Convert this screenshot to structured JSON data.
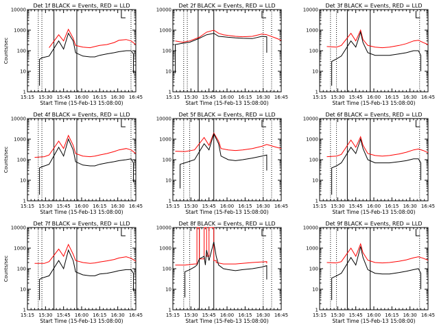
{
  "chart_data": [
    {
      "type": "line",
      "title": "Det 1f BLACK = Events, RED = LLD",
      "xlabel": "Start Time (15-Feb-13 15:08:00)",
      "ylabel": "Counts/sec",
      "xticks": [
        "15:15",
        "15:30",
        "15:45",
        "16:00",
        "16:15",
        "16:30",
        "16:45"
      ],
      "yticks": [
        "1",
        "10",
        "100",
        "1000",
        "10000"
      ],
      "xlim_minutes": [
        7,
        52
      ],
      "ylim": [
        1,
        10000
      ],
      "yscale": "log",
      "series": [
        {
          "color": "#000000",
          "x": [
            12,
            12,
            13,
            16,
            20,
            22,
            24,
            26,
            27,
            30,
            33,
            35,
            37,
            40,
            43,
            45,
            48,
            50,
            51,
            51
          ],
          "y": [
            2,
            38,
            45,
            55,
            300,
            120,
            700,
            300,
            80,
            55,
            50,
            50,
            60,
            70,
            80,
            90,
            100,
            100,
            70,
            8
          ]
        },
        {
          "color": "#ff0000",
          "x": [
            16,
            20,
            22,
            24,
            26,
            27,
            30,
            33,
            35,
            37,
            40,
            43,
            45,
            48,
            50,
            52
          ],
          "y": [
            140,
            600,
            300,
            1100,
            400,
            180,
            150,
            140,
            160,
            180,
            200,
            250,
            320,
            350,
            300,
            200
          ]
        }
      ],
      "vlines_dotted": [
        11.5,
        13,
        50
      ],
      "vlines_solid": [
        18,
        27.5
      ],
      "flag": 46
    },
    {
      "type": "line",
      "title": "Det 2f BLACK = Events, RED = LLD",
      "xlabel": "Start Time (15-Feb-13 15:08:00)",
      "ylabel": "",
      "xticks": [
        "15:15",
        "15:30",
        "15:45",
        "16:00",
        "16:15",
        "16:30",
        "16:45"
      ],
      "yticks": [
        "1",
        "10",
        "100",
        "1000",
        "10000"
      ],
      "xlim_minutes": [
        7,
        52
      ],
      "ylim": [
        1,
        10000
      ],
      "yscale": "log",
      "series": [
        {
          "color": "#000000",
          "x": [
            8,
            8,
            10,
            14,
            18,
            21,
            24,
            26,
            28,
            30,
            33,
            36,
            40,
            44,
            46,
            46
          ],
          "y": [
            8,
            200,
            220,
            260,
            400,
            600,
            700,
            500,
            480,
            450,
            420,
            400,
            390,
            500,
            480,
            80
          ]
        },
        {
          "color": "#ff0000",
          "x": [
            8,
            11,
            14,
            18,
            21,
            24,
            26,
            28,
            30,
            33,
            36,
            40,
            44,
            46,
            50,
            52
          ],
          "y": [
            300,
            260,
            300,
            450,
            800,
            1000,
            700,
            600,
            550,
            500,
            480,
            500,
            650,
            600,
            400,
            320
          ]
        }
      ],
      "vlines_dotted": [
        11.5,
        13,
        44.5,
        48
      ],
      "vlines_solid": [
        17.5,
        24
      ],
      "flag": 44
    },
    {
      "type": "line",
      "title": "Det 3f BLACK = Events, RED = LLD",
      "xlabel": "Start Time (15-Feb-13 15:08:00)",
      "ylabel": "",
      "xticks": [
        "15:15",
        "15:30",
        "15:45",
        "16:00",
        "16:15",
        "16:30",
        "16:45"
      ],
      "yticks": [
        "1",
        "10",
        "100",
        "1000",
        "10000"
      ],
      "xlim_minutes": [
        7,
        52
      ],
      "ylim": [
        1,
        10000
      ],
      "yscale": "log",
      "series": [
        {
          "color": "#000000",
          "x": [
            12,
            12,
            14,
            16,
            20,
            22,
            24,
            25,
            27,
            30,
            33,
            36,
            40,
            43,
            46,
            48,
            49,
            49
          ],
          "y": [
            2,
            30,
            40,
            55,
            300,
            150,
            800,
            250,
            80,
            60,
            60,
            60,
            70,
            80,
            100,
            100,
            60,
            10
          ]
        },
        {
          "color": "#ff0000",
          "x": [
            10,
            14,
            16,
            20,
            22,
            24,
            25,
            27,
            30,
            33,
            36,
            40,
            43,
            46,
            48,
            50,
            52
          ],
          "y": [
            160,
            150,
            180,
            700,
            300,
            1000,
            350,
            180,
            150,
            140,
            150,
            180,
            220,
            300,
            320,
            250,
            200
          ]
        }
      ],
      "vlines_dotted": [
        11.5,
        14,
        48.5
      ],
      "vlines_solid": [
        18.5,
        28
      ],
      "flag": 47
    },
    {
      "type": "line",
      "title": "Det 4f BLACK = Events, RED = LLD",
      "xlabel": "Start Time (15-Feb-13 15:08:00)",
      "ylabel": "Counts/sec",
      "xticks": [
        "15:15",
        "15:30",
        "15:45",
        "16:00",
        "16:15",
        "16:30",
        "16:45"
      ],
      "yticks": [
        "1",
        "10",
        "100",
        "1000",
        "10000"
      ],
      "xlim_minutes": [
        7,
        52
      ],
      "ylim": [
        1,
        10000
      ],
      "yscale": "log",
      "series": [
        {
          "color": "#000000",
          "x": [
            12,
            12,
            13,
            16,
            20,
            22,
            24,
            26,
            27,
            30,
            33,
            35,
            37,
            40,
            43,
            45,
            48,
            50,
            51,
            51
          ],
          "y": [
            2,
            40,
            45,
            60,
            400,
            150,
            1000,
            300,
            80,
            55,
            50,
            50,
            60,
            70,
            80,
            90,
            100,
            110,
            70,
            8
          ]
        },
        {
          "color": "#ff0000",
          "x": [
            10,
            14,
            16,
            20,
            22,
            24,
            26,
            27,
            30,
            33,
            35,
            37,
            40,
            43,
            45,
            48,
            50,
            52
          ],
          "y": [
            130,
            140,
            170,
            800,
            350,
            1500,
            500,
            200,
            150,
            140,
            150,
            170,
            200,
            250,
            300,
            350,
            300,
            200
          ]
        }
      ],
      "vlines_dotted": [
        11.5,
        13,
        50
      ],
      "vlines_solid": [
        18,
        27.5
      ],
      "flag": 46
    },
    {
      "type": "line",
      "title": "Det 5f BLACK = Events, RED = LLD",
      "xlabel": "Start Time (15-Feb-13 15:08:00)",
      "ylabel": "",
      "xticks": [
        "15:15",
        "15:30",
        "15:45",
        "16:00",
        "16:15",
        "16:30",
        "16:45"
      ],
      "yticks": [
        "1",
        "10",
        "100",
        "1000",
        "10000"
      ],
      "xlim_minutes": [
        7,
        52
      ],
      "ylim": [
        1,
        10000
      ],
      "yscale": "log",
      "series": [
        {
          "color": "#000000",
          "x": [
            10,
            10,
            12,
            16,
            20,
            22,
            24,
            26,
            27,
            30,
            33,
            36,
            40,
            44,
            46,
            46
          ],
          "y": [
            4,
            60,
            70,
            100,
            600,
            300,
            1800,
            600,
            150,
            100,
            90,
            100,
            120,
            150,
            170,
            30
          ]
        },
        {
          "color": "#ff0000",
          "x": [
            8,
            12,
            16,
            20,
            22,
            24,
            26,
            27,
            30,
            33,
            36,
            40,
            44,
            46,
            50,
            52
          ],
          "y": [
            260,
            250,
            300,
            1200,
            500,
            2000,
            800,
            350,
            300,
            280,
            300,
            350,
            450,
            550,
            400,
            350
          ]
        }
      ],
      "vlines_dotted": [
        11.5,
        14,
        44.5,
        48
      ],
      "vlines_solid": [
        18,
        24
      ],
      "flag": 44
    },
    {
      "type": "line",
      "title": "Det 6f BLACK = Events, RED = LLD",
      "xlabel": "Start Time (15-Feb-13 15:08:00)",
      "ylabel": "",
      "xticks": [
        "15:15",
        "15:30",
        "15:45",
        "16:00",
        "16:15",
        "16:30",
        "16:45"
      ],
      "yticks": [
        "1",
        "10",
        "100",
        "1000",
        "10000"
      ],
      "xlim_minutes": [
        7,
        52
      ],
      "ylim": [
        1,
        10000
      ],
      "yscale": "log",
      "series": [
        {
          "color": "#000000",
          "x": [
            12,
            12,
            14,
            16,
            20,
            22,
            24,
            25,
            27,
            30,
            33,
            36,
            40,
            43,
            46,
            48,
            49,
            49
          ],
          "y": [
            2,
            40,
            50,
            70,
            400,
            200,
            1000,
            350,
            100,
            70,
            70,
            70,
            80,
            90,
            110,
            110,
            70,
            10
          ]
        },
        {
          "color": "#ff0000",
          "x": [
            10,
            14,
            16,
            20,
            22,
            24,
            25,
            27,
            30,
            33,
            36,
            40,
            43,
            46,
            48,
            50,
            52
          ],
          "y": [
            140,
            150,
            180,
            900,
            400,
            1300,
            500,
            200,
            160,
            150,
            160,
            190,
            230,
            300,
            330,
            280,
            220
          ]
        }
      ],
      "vlines_dotted": [
        11.5,
        14,
        48.5
      ],
      "vlines_solid": [
        18.5,
        28
      ],
      "flag": 47
    },
    {
      "type": "line",
      "title": "Det 7f BLACK = Events, RED = LLD",
      "xlabel": "Start Time (15-Feb-13 15:08:00)",
      "ylabel": "Counts/sec",
      "xticks": [
        "15:15",
        "15:30",
        "15:45",
        "16:00",
        "16:15",
        "16:30",
        "16:45"
      ],
      "yticks": [
        "1",
        "10",
        "100",
        "1000",
        "10000"
      ],
      "xlim_minutes": [
        7,
        52
      ],
      "ylim": [
        1,
        10000
      ],
      "yscale": "log",
      "series": [
        {
          "color": "#000000",
          "x": [
            12,
            12,
            13,
            16,
            20,
            22,
            24,
            26,
            27,
            30,
            33,
            35,
            37,
            40,
            43,
            45,
            48,
            50,
            51,
            51
          ],
          "y": [
            3,
            30,
            35,
            45,
            250,
            100,
            800,
            250,
            70,
            50,
            45,
            45,
            55,
            60,
            70,
            80,
            90,
            90,
            60,
            8
          ]
        },
        {
          "color": "#ff0000",
          "x": [
            10,
            14,
            16,
            20,
            22,
            24,
            26,
            27,
            30,
            33,
            35,
            37,
            40,
            43,
            45,
            48,
            50,
            52
          ],
          "y": [
            180,
            180,
            220,
            900,
            400,
            1500,
            500,
            250,
            200,
            180,
            190,
            210,
            240,
            280,
            330,
            380,
            320,
            230
          ]
        }
      ],
      "vlines_dotted": [
        11.5,
        13,
        50
      ],
      "vlines_solid": [
        18,
        27.5
      ],
      "flag": 46
    },
    {
      "type": "line",
      "title": "Det 8f BLACK = Events, RED = LLD",
      "xlabel": "Start Time (15-Feb-13 15:08:00)",
      "ylabel": "",
      "xticks": [
        "15:15",
        "15:30",
        "15:45",
        "16:00",
        "16:15",
        "16:30",
        "16:45"
      ],
      "yticks": [
        "1",
        "10",
        "100",
        "1000",
        "10000"
      ],
      "xlim_minutes": [
        7,
        52
      ],
      "ylim": [
        1,
        10000
      ],
      "yscale": "log",
      "series": [
        {
          "color": "#000000",
          "x": [
            12,
            12,
            14,
            16,
            17,
            18,
            20,
            20.5,
            21,
            22,
            24,
            25,
            26,
            28,
            30,
            33,
            36,
            40,
            44,
            46,
            46
          ],
          "y": [
            4,
            70,
            90,
            120,
            150,
            300,
            400,
            150,
            800,
            250,
            2000,
            400,
            150,
            100,
            90,
            80,
            90,
            100,
            120,
            140,
            30
          ]
        },
        {
          "color": "#ff0000",
          "x": [
            8,
            12,
            16,
            17,
            17,
            18,
            18,
            20,
            20,
            21,
            21,
            22,
            22,
            24,
            24,
            25,
            25,
            28,
            33,
            40,
            46,
            46
          ],
          "y": [
            150,
            150,
            170,
            170,
            10000,
            10000,
            300,
            300,
            10000,
            10000,
            400,
            400,
            10000,
            10000,
            250,
            250,
            200,
            170,
            170,
            200,
            220,
            180
          ]
        }
      ],
      "vlines_dotted": [
        11.5,
        14,
        44.5,
        48
      ],
      "vlines_solid": [
        18,
        24
      ],
      "flag": 44
    },
    {
      "type": "line",
      "title": "Det 9f BLACK = Events, RED = LLD",
      "xlabel": "Start Time (15-Feb-13 15:08:00)",
      "ylabel": "",
      "xticks": [
        "15:15",
        "15:30",
        "15:45",
        "16:00",
        "16:15",
        "16:30",
        "16:45"
      ],
      "yticks": [
        "1",
        "10",
        "100",
        "1000",
        "10000"
      ],
      "xlim_minutes": [
        7,
        52
      ],
      "ylim": [
        1,
        10000
      ],
      "yscale": "log",
      "series": [
        {
          "color": "#000000",
          "x": [
            12,
            12,
            14,
            16,
            20,
            22,
            24,
            25,
            27,
            30,
            33,
            36,
            40,
            43,
            46,
            48,
            49,
            49
          ],
          "y": [
            3,
            35,
            45,
            60,
            350,
            150,
            1200,
            350,
            90,
            60,
            55,
            55,
            65,
            75,
            90,
            100,
            60,
            10
          ]
        },
        {
          "color": "#ff0000",
          "x": [
            10,
            14,
            16,
            20,
            22,
            24,
            25,
            27,
            30,
            33,
            36,
            40,
            43,
            46,
            48,
            50,
            52
          ],
          "y": [
            200,
            190,
            220,
            1000,
            400,
            1600,
            600,
            260,
            200,
            190,
            200,
            230,
            270,
            340,
            380,
            320,
            260
          ]
        }
      ],
      "vlines_dotted": [
        11.5,
        14,
        48.5
      ],
      "vlines_solid": [
        18.5,
        28
      ],
      "flag": 47
    }
  ]
}
